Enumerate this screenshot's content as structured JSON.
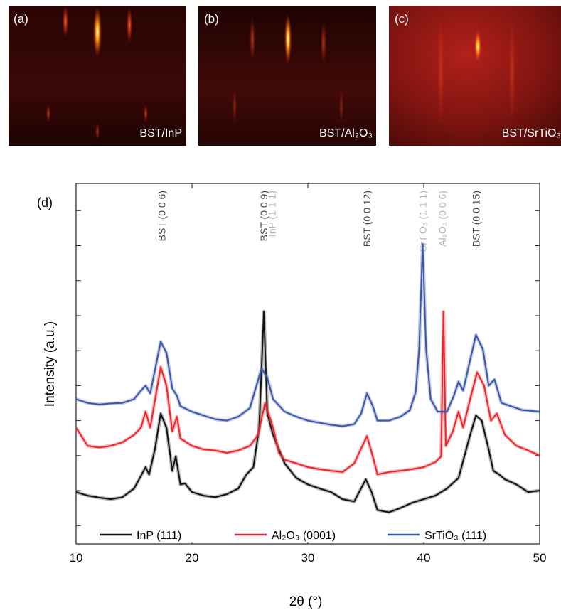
{
  "images": [
    {
      "label": "(a)",
      "caption": "BST/InP"
    },
    {
      "label": "(b)",
      "caption": "BST/Al₂O₃"
    },
    {
      "label": "(c)",
      "caption": "BST/SrTiO₃"
    }
  ],
  "chart_data": {
    "type": "line",
    "panel_label": "(d)",
    "xlabel": "2θ (°)",
    "ylabel": "Intensity (a.u.)",
    "xlim": [
      10,
      50
    ],
    "xticks": [
      10,
      20,
      30,
      40,
      50
    ],
    "log_y": true,
    "ylim": [
      3,
      60000000000
    ],
    "yticks": [
      10,
      100,
      1000,
      10000,
      100000,
      1000000,
      10000000,
      100000000,
      1000000000,
      10000000000
    ],
    "legend": "lower center",
    "series": [
      {
        "name": "InP (111)",
        "color": "#111111",
        "x": [
          10,
          11,
          12,
          13,
          14,
          15,
          15.5,
          16,
          16.3,
          16.8,
          17.3,
          17.8,
          18.3,
          18.6,
          19,
          19.4,
          20,
          21,
          22,
          23,
          24,
          24.7,
          25.3,
          25.8,
          26.2,
          26.5,
          27,
          27.5,
          28,
          29,
          30,
          31,
          32,
          33,
          34,
          35,
          35.5,
          36,
          37,
          38,
          39,
          40,
          41,
          42,
          43,
          44,
          44.5,
          45,
          45.6,
          46,
          46.5,
          47,
          48,
          49,
          50
        ],
        "values": [
          91,
          72,
          63,
          57,
          65,
          115,
          230,
          470,
          290,
          1500,
          16000,
          6300,
          370,
          950,
          150,
          160,
          91,
          72,
          65,
          79,
          115,
          290,
          470,
          6300,
          13000000,
          16000,
          3900,
          1500,
          600,
          230,
          150,
          115,
          91,
          57,
          49,
          210,
          91,
          28,
          24,
          32,
          45,
          57,
          72,
          115,
          230,
          3900,
          14000,
          10000,
          1500,
          370,
          290,
          210,
          150,
          91,
          100
        ]
      },
      {
        "name": "Al₂O₃ (0001)",
        "color": "#e8262b",
        "x": [
          10,
          11,
          12,
          13,
          14,
          15,
          15.6,
          16,
          16.4,
          17.3,
          17.8,
          18.3,
          18.7,
          19,
          20,
          21,
          22,
          23,
          24,
          25,
          25.7,
          26.3,
          27,
          27.5,
          28,
          29,
          30,
          31,
          32,
          33,
          34,
          35.1,
          35.6,
          36,
          37,
          38,
          39,
          40,
          41,
          41.5,
          41.7,
          41.9,
          42.5,
          43,
          43.4,
          44,
          44.6,
          45.2,
          45.8,
          46.3,
          47,
          48,
          49,
          50
        ],
        "values": [
          6300,
          1900,
          1700,
          1900,
          2400,
          3900,
          6300,
          18000,
          6300,
          340000,
          100000,
          4900,
          13000,
          3100,
          1900,
          1500,
          1400,
          1200,
          1400,
          1900,
          3900,
          32000,
          6300,
          1200,
          760,
          600,
          470,
          410,
          370,
          340,
          600,
          3600,
          950,
          290,
          340,
          370,
          410,
          470,
          650,
          950,
          13000000,
          1900,
          4900,
          18000,
          6300,
          41000,
          240000,
          100000,
          10000,
          16000,
          3900,
          1900,
          1400,
          1000
        ]
      },
      {
        "name": "SrTiO₃ (111)",
        "color": "#3a57a7",
        "x": [
          10,
          11,
          12,
          13,
          14,
          15,
          15.6,
          16,
          16.4,
          17.3,
          17.8,
          18.3,
          18.7,
          19,
          20,
          21,
          22,
          23,
          24,
          25,
          26,
          26.5,
          27,
          28,
          29,
          30,
          31,
          32,
          33,
          34,
          34.6,
          35.1,
          35.6,
          36,
          37,
          38,
          38.8,
          39.3,
          39.6,
          39.9,
          40.2,
          40.6,
          41.2,
          42,
          42.6,
          43,
          43.4,
          44,
          44.5,
          45.1,
          45.6,
          46.1,
          46.7,
          47.5,
          48.5,
          50
        ],
        "values": [
          41000,
          32000,
          29000,
          31000,
          32000,
          41000,
          72000,
          100000,
          60000,
          1800000,
          870000,
          83000,
          52000,
          26000,
          18000,
          14000,
          11000,
          10000,
          13000,
          23000,
          310000,
          170000,
          41000,
          18000,
          13000,
          10000,
          8700,
          7600,
          6900,
          7900,
          16000,
          60000,
          26000,
          10000,
          10000,
          13000,
          20000,
          65000,
          1100000,
          1100000000,
          1100000,
          41000,
          18000,
          18000,
          52000,
          130000,
          72000,
          540000,
          2800000,
          1100000,
          100000,
          150000,
          32000,
          26000,
          20000,
          18000
        ]
      }
    ],
    "annotations": [
      {
        "text": "BST (0 0 6)",
        "x": 17.4,
        "color": "#444444"
      },
      {
        "text": "BST (0 0 9)",
        "x": 26.2,
        "color": "#444444"
      },
      {
        "text": "InP (1 1 1)",
        "x": 26.9,
        "color": "#b4b4b4"
      },
      {
        "text": "BST (0 0 12)",
        "x": 35.1,
        "color": "#444444"
      },
      {
        "text": "SrTiO₃ (1 1 1)",
        "x": 39.9,
        "color": "#b4b4b4"
      },
      {
        "text": "Al₂O₃ (0 0 6)",
        "x": 41.6,
        "color": "#b4b4b4"
      },
      {
        "text": "BST (0 0 15)",
        "x": 44.5,
        "color": "#444444"
      }
    ]
  }
}
